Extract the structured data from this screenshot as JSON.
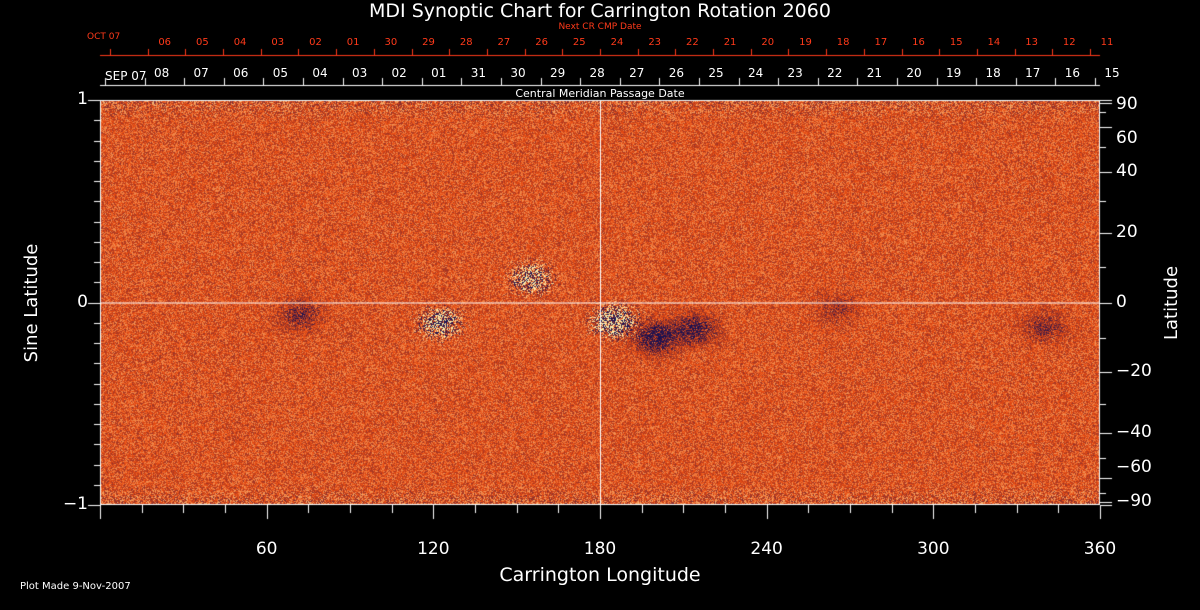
{
  "chart_data": {
    "type": "heatmap",
    "title": "MDI Synoptic Chart for Carrington Rotation 2060",
    "xlabel": "Carrington Longitude",
    "ylabel_left": "Sine Latitude",
    "ylabel_right": "Latitude",
    "xlim": [
      0,
      360
    ],
    "ylim": [
      -1,
      1
    ],
    "x_ticks": [
      60,
      120,
      180,
      240,
      300,
      360
    ],
    "y_ticks_left": [
      {
        "value": 1,
        "label": "1"
      },
      {
        "value": 0,
        "label": "0"
      },
      {
        "value": -1,
        "label": "−1"
      }
    ],
    "y_ticks_right": [
      90,
      60,
      40,
      20,
      0,
      -20,
      -40,
      -60,
      -90
    ],
    "y_ticks_right_labels": [
      "90",
      "60",
      "40",
      "20",
      "0",
      "−20",
      "−40",
      "−60",
      "−90"
    ],
    "top_axis": {
      "label": "Central Meridian Passage Date",
      "dates": [
        "SEP 07",
        "08",
        "07",
        "06",
        "05",
        "04",
        "03",
        "02",
        "01",
        "31",
        "30",
        "29",
        "28",
        "27",
        "26",
        "25",
        "24",
        "23",
        "22",
        "21",
        "20",
        "19",
        "18",
        "17",
        "16",
        "15"
      ]
    },
    "next_axis": {
      "label": "Next CR CMP Date",
      "dates": [
        "OCT 07",
        "06",
        "05",
        "04",
        "03",
        "02",
        "01",
        "30",
        "29",
        "28",
        "27",
        "26",
        "25",
        "24",
        "23",
        "22",
        "21",
        "20",
        "19",
        "18",
        "17",
        "16",
        "15",
        "14",
        "13",
        "12",
        "11"
      ]
    },
    "colors": {
      "background": "#000000",
      "field_base": "#e84a10",
      "positive_flux": "#fff3b0",
      "negative_flux": "#1a1050",
      "next_axis_text": "#ff3a1a"
    },
    "active_regions": [
      {
        "lon": 155,
        "lat": 0.12,
        "polarity": "mixed",
        "strength": 0.7
      },
      {
        "lon": 122,
        "lat": -0.1,
        "polarity": "mixed",
        "strength": 0.8
      },
      {
        "lon": 72,
        "lat": -0.06,
        "polarity": "negative",
        "strength": 0.5
      },
      {
        "lon": 185,
        "lat": -0.09,
        "polarity": "mixed",
        "strength": 1.0
      },
      {
        "lon": 200,
        "lat": -0.17,
        "polarity": "negative",
        "strength": 0.9
      },
      {
        "lon": 214,
        "lat": -0.13,
        "polarity": "negative",
        "strength": 0.7
      },
      {
        "lon": 265,
        "lat": -0.03,
        "polarity": "negative",
        "strength": 0.3
      },
      {
        "lon": 340,
        "lat": -0.12,
        "polarity": "negative",
        "strength": 0.4
      }
    ],
    "grid": "center crosshair at longitude 180 and sine latitude 0",
    "footer": "Plot Made  9-Nov-2007"
  }
}
